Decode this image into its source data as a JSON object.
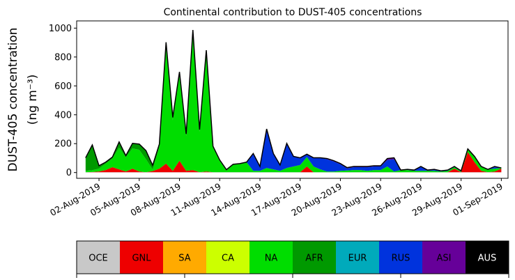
{
  "chart_data": {
    "type": "area",
    "title": "Continental contribution to DUST-405 concentrations",
    "ylabel_line1": "DUST-405 concentration",
    "ylabel_line2": "(ng m⁻³)",
    "xlabel": "",
    "ylim": [
      -40,
      1050
    ],
    "xlim": [
      "2019-07-31T08:00",
      "2019-09-01T12:00"
    ],
    "yticks": [
      0,
      200,
      400,
      600,
      800,
      1000
    ],
    "xticks": [
      "02-Aug-2019",
      "05-Aug-2019",
      "08-Aug-2019",
      "11-Aug-2019",
      "14-Aug-2019",
      "17-Aug-2019",
      "20-Aug-2019",
      "23-Aug-2019",
      "26-Aug-2019",
      "29-Aug-2019",
      "01-Sep-2019"
    ],
    "xtick_dates": [
      "2019-08-02",
      "2019-08-05",
      "2019-08-08",
      "2019-08-11",
      "2019-08-14",
      "2019-08-17",
      "2019-08-20",
      "2019-08-23",
      "2019-08-26",
      "2019-08-29",
      "2019-09-01"
    ],
    "x": [
      "2019-08-01T00:00",
      "2019-08-01T12:00",
      "2019-08-02T00:00",
      "2019-08-02T12:00",
      "2019-08-03T00:00",
      "2019-08-03T12:00",
      "2019-08-04T00:00",
      "2019-08-04T12:00",
      "2019-08-05T00:00",
      "2019-08-05T12:00",
      "2019-08-06T00:00",
      "2019-08-06T12:00",
      "2019-08-07T00:00",
      "2019-08-07T12:00",
      "2019-08-08T00:00",
      "2019-08-08T12:00",
      "2019-08-09T00:00",
      "2019-08-09T12:00",
      "2019-08-10T00:00",
      "2019-08-10T12:00",
      "2019-08-11T00:00",
      "2019-08-11T12:00",
      "2019-08-12T00:00",
      "2019-08-12T12:00",
      "2019-08-13T00:00",
      "2019-08-13T12:00",
      "2019-08-14T00:00",
      "2019-08-14T12:00",
      "2019-08-15T00:00",
      "2019-08-15T12:00",
      "2019-08-16T00:00",
      "2019-08-16T12:00",
      "2019-08-17T00:00",
      "2019-08-17T12:00",
      "2019-08-18T00:00",
      "2019-08-18T12:00",
      "2019-08-19T00:00",
      "2019-08-19T12:00",
      "2019-08-20T00:00",
      "2019-08-20T12:00",
      "2019-08-21T00:00",
      "2019-08-21T12:00",
      "2019-08-22T00:00",
      "2019-08-22T12:00",
      "2019-08-23T00:00",
      "2019-08-23T12:00",
      "2019-08-24T00:00",
      "2019-08-24T12:00",
      "2019-08-25T00:00",
      "2019-08-25T12:00",
      "2019-08-26T00:00",
      "2019-08-26T12:00",
      "2019-08-27T00:00",
      "2019-08-27T12:00",
      "2019-08-28T00:00",
      "2019-08-28T12:00",
      "2019-08-29T00:00",
      "2019-08-29T12:00",
      "2019-08-30T00:00",
      "2019-08-30T12:00",
      "2019-08-31T00:00",
      "2019-08-31T12:00",
      "2019-09-01T00:00"
    ],
    "series": [
      {
        "name": "OCE",
        "color": "#c8c8c8",
        "values": [
          2,
          2,
          2,
          2,
          2,
          2,
          2,
          2,
          2,
          2,
          2,
          2,
          2,
          2,
          2,
          2,
          2,
          2,
          2,
          2,
          2,
          2,
          2,
          2,
          2,
          2,
          2,
          2,
          2,
          2,
          2,
          2,
          2,
          2,
          2,
          2,
          2,
          2,
          2,
          2,
          2,
          2,
          2,
          2,
          2,
          2,
          2,
          2,
          2,
          2,
          2,
          2,
          2,
          2,
          2,
          2,
          2,
          2,
          2,
          2,
          2,
          2,
          2
        ]
      },
      {
        "name": "GNL",
        "color": "#ee0000",
        "values": [
          0,
          2,
          5,
          15,
          35,
          20,
          5,
          25,
          5,
          0,
          8,
          25,
          60,
          10,
          80,
          10,
          15,
          0,
          5,
          0,
          0,
          0,
          0,
          0,
          0,
          0,
          0,
          0,
          0,
          0,
          0,
          0,
          0,
          40,
          0,
          0,
          0,
          0,
          0,
          0,
          0,
          0,
          0,
          0,
          0,
          0,
          0,
          0,
          0,
          0,
          0,
          0,
          0,
          0,
          0,
          25,
          0,
          140,
          70,
          10,
          0,
          5,
          25
        ]
      },
      {
        "name": "SA",
        "color": "#ffaa00",
        "values": [
          0,
          0,
          0,
          0,
          0,
          0,
          0,
          0,
          0,
          0,
          0,
          0,
          0,
          0,
          0,
          0,
          0,
          0,
          0,
          0,
          0,
          0,
          0,
          0,
          0,
          0,
          0,
          0,
          0,
          0,
          0,
          0,
          0,
          0,
          0,
          0,
          0,
          0,
          0,
          0,
          0,
          0,
          0,
          0,
          0,
          0,
          0,
          0,
          0,
          0,
          0,
          0,
          0,
          0,
          0,
          0,
          0,
          0,
          0,
          0,
          0,
          0,
          0
        ]
      },
      {
        "name": "CA",
        "color": "#ccff00",
        "values": [
          0,
          0,
          0,
          0,
          0,
          0,
          0,
          0,
          0,
          0,
          0,
          0,
          0,
          0,
          0,
          0,
          0,
          0,
          0,
          0,
          0,
          0,
          0,
          0,
          0,
          0,
          0,
          0,
          0,
          0,
          0,
          0,
          0,
          0,
          0,
          0,
          0,
          0,
          0,
          0,
          0,
          0,
          0,
          0,
          0,
          0,
          0,
          0,
          0,
          0,
          0,
          0,
          0,
          0,
          0,
          0,
          0,
          0,
          0,
          0,
          0,
          0,
          0
        ]
      },
      {
        "name": "NA",
        "color": "#00dd00",
        "values": [
          10,
          12,
          20,
          45,
          60,
          150,
          100,
          140,
          150,
          90,
          10,
          150,
          820,
          350,
          600,
          240,
          960,
          280,
          830,
          170,
          80,
          10,
          55,
          60,
          70,
          10,
          10,
          30,
          20,
          10,
          30,
          40,
          50,
          65,
          40,
          20,
          5,
          5,
          10,
          12,
          15,
          15,
          10,
          15,
          15,
          40,
          5,
          15,
          15,
          10,
          10,
          10,
          10,
          5,
          10,
          10,
          5,
          20,
          40,
          30,
          20,
          20,
          5
        ]
      },
      {
        "name": "AFR",
        "color": "#009900",
        "values": [
          90,
          175,
          20,
          10,
          10,
          40,
          10,
          35,
          40,
          60,
          30,
          20,
          20,
          20,
          15,
          15,
          10,
          15,
          10,
          10,
          5,
          5,
          0,
          0,
          0,
          0,
          0,
          0,
          0,
          0,
          0,
          0,
          0,
          0,
          0,
          0,
          0,
          0,
          0,
          0,
          0,
          0,
          0,
          0,
          0,
          0,
          0,
          0,
          0,
          0,
          0,
          0,
          0,
          0,
          0,
          0,
          0,
          0,
          0,
          0,
          0,
          0,
          0
        ]
      },
      {
        "name": "EUR",
        "color": "#00aabb",
        "values": [
          0,
          0,
          0,
          0,
          0,
          0,
          0,
          0,
          0,
          0,
          0,
          0,
          0,
          0,
          0,
          0,
          0,
          0,
          0,
          0,
          0,
          0,
          0,
          0,
          0,
          0,
          0,
          0,
          0,
          0,
          0,
          0,
          0,
          0,
          0,
          0,
          0,
          0,
          0,
          0,
          0,
          0,
          0,
          0,
          0,
          0,
          0,
          0,
          0,
          0,
          0,
          0,
          0,
          0,
          0,
          0,
          0,
          0,
          0,
          0,
          0,
          0,
          0
        ]
      },
      {
        "name": "RUS",
        "color": "#0033dd",
        "values": [
          0,
          0,
          0,
          0,
          0,
          0,
          0,
          0,
          0,
          0,
          0,
          0,
          0,
          0,
          0,
          0,
          0,
          0,
          0,
          0,
          0,
          3,
          0,
          0,
          0,
          120,
          30,
          270,
          110,
          40,
          170,
          70,
          50,
          20,
          60,
          80,
          85,
          70,
          45,
          15,
          20,
          20,
          25,
          25,
          25,
          45,
          85,
          0,
          5,
          5,
          30,
          5,
          10,
          5,
          5,
          5,
          5,
          2,
          0,
          0,
          0,
          10,
          0
        ]
      },
      {
        "name": "ASI",
        "color": "#660099",
        "values": [
          0,
          0,
          0,
          0,
          0,
          0,
          0,
          0,
          0,
          0,
          0,
          0,
          0,
          0,
          0,
          0,
          0,
          0,
          0,
          0,
          0,
          0,
          0,
          0,
          0,
          0,
          0,
          0,
          0,
          0,
          0,
          0,
          0,
          0,
          0,
          0,
          5,
          5,
          5,
          5,
          5,
          5,
          5,
          5,
          5,
          10,
          10,
          0,
          0,
          0,
          0,
          0,
          0,
          0,
          0,
          0,
          0,
          0,
          0,
          0,
          0,
          5,
          0
        ]
      },
      {
        "name": "AUS",
        "color": "#000000",
        "values": [
          0,
          0,
          0,
          0,
          0,
          0,
          0,
          0,
          0,
          0,
          0,
          0,
          0,
          0,
          0,
          0,
          0,
          0,
          0,
          0,
          0,
          0,
          0,
          0,
          0,
          0,
          0,
          0,
          0,
          0,
          0,
          0,
          0,
          0,
          0,
          0,
          0,
          0,
          0,
          0,
          0,
          0,
          0,
          0,
          0,
          0,
          0,
          0,
          0,
          0,
          0,
          0,
          0,
          0,
          0,
          0,
          0,
          0,
          0,
          0,
          0,
          0,
          0
        ]
      }
    ],
    "legend_placement": "below",
    "grid": false
  }
}
